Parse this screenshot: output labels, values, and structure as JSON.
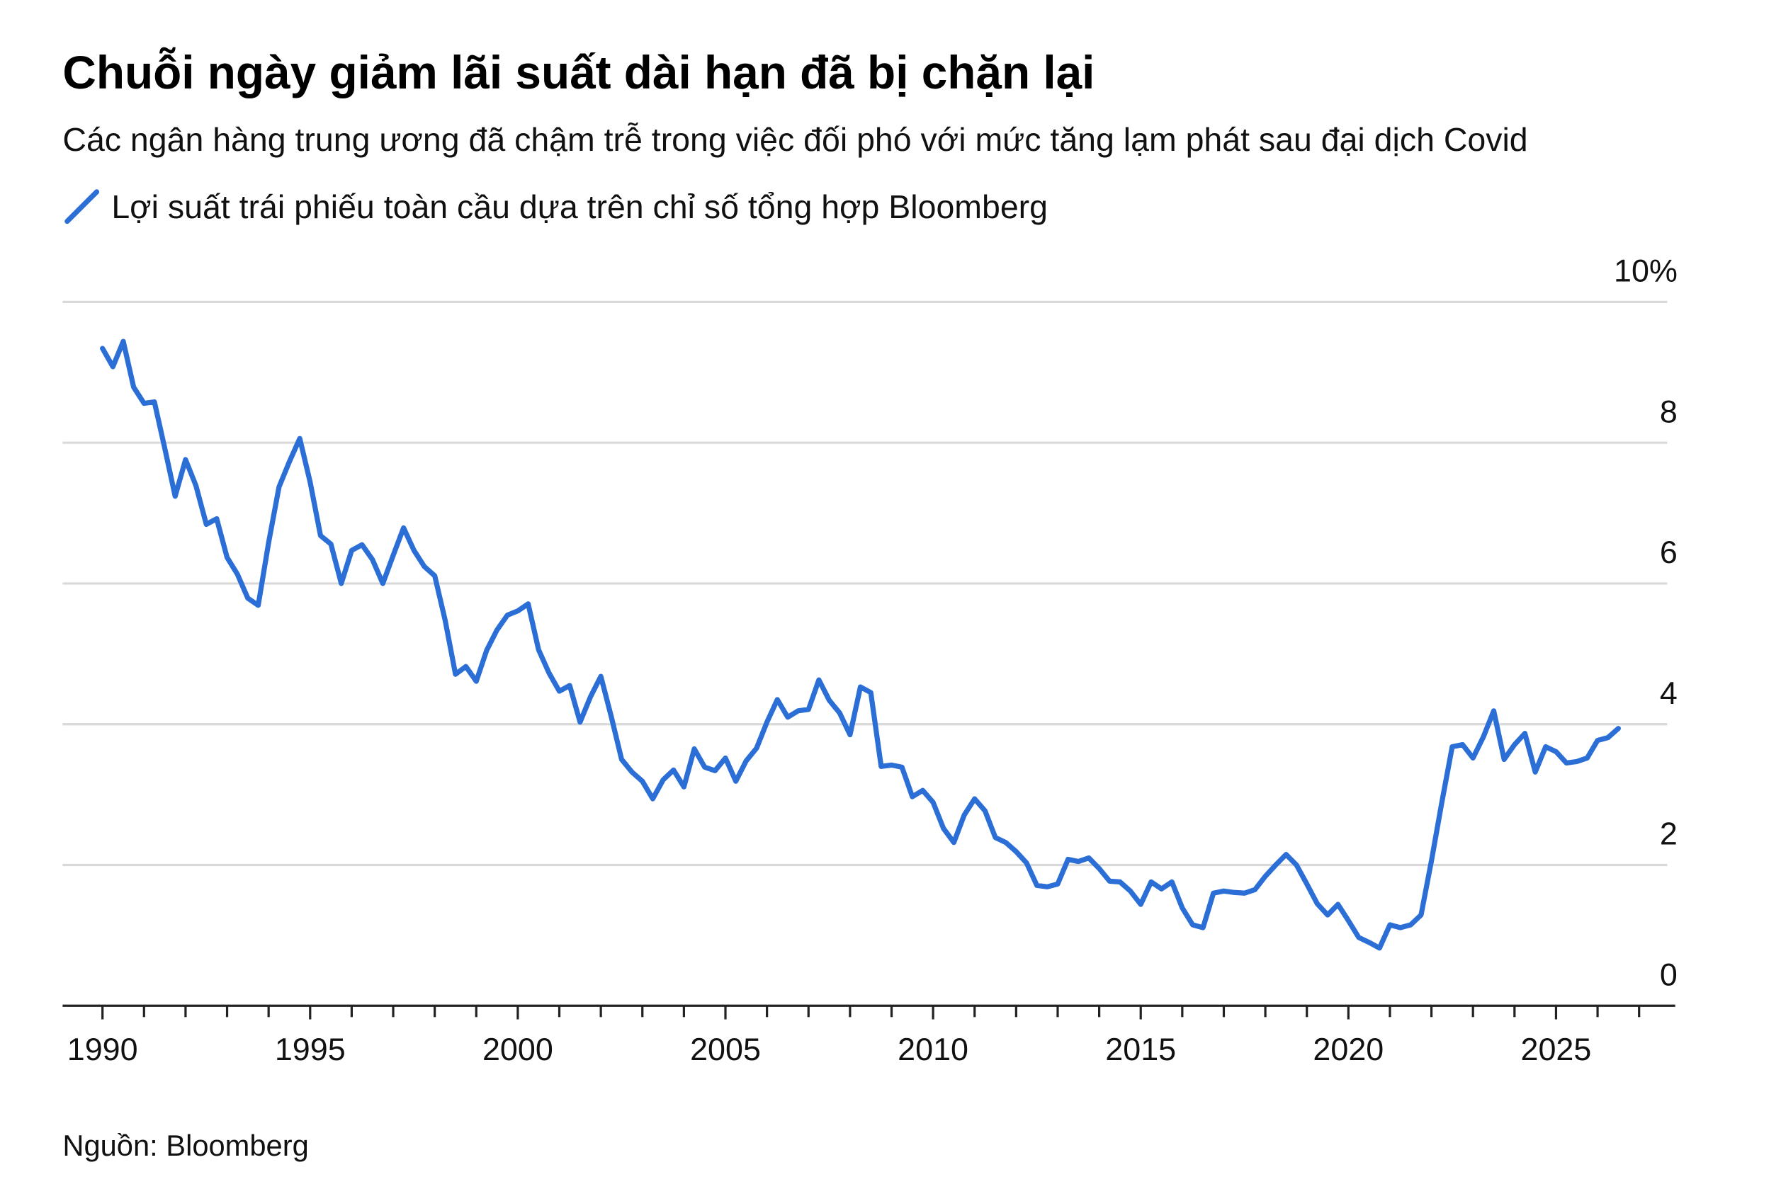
{
  "chart_data": {
    "type": "line",
    "title": "Chuỗi ngày giảm lãi suất dài hạn đã bị chặn lại",
    "subtitle": "Các ngân hàng trung ương đã chậm trễ trong việc đối phó với mức tăng lạm phát sau đại dịch Covid",
    "source": "Nguồn: Bloomberg",
    "x": [
      1990,
      1990.25,
      1990.5,
      1990.75,
      1991,
      1991.25,
      1991.5,
      1991.75,
      1992,
      1992.25,
      1992.5,
      1992.75,
      1993,
      1993.25,
      1993.5,
      1993.75,
      1994,
      1994.25,
      1994.5,
      1994.75,
      1995,
      1995.25,
      1995.5,
      1995.75,
      1996,
      1996.25,
      1996.5,
      1996.75,
      1997,
      1997.25,
      1997.5,
      1997.75,
      1998,
      1998.25,
      1998.5,
      1998.75,
      1999,
      1999.25,
      1999.5,
      1999.75,
      2000,
      2000.25,
      2000.5,
      2000.75,
      2001,
      2001.25,
      2001.5,
      2001.75,
      2002,
      2002.25,
      2002.5,
      2002.75,
      2003,
      2003.25,
      2003.5,
      2003.75,
      2004,
      2004.25,
      2004.5,
      2004.75,
      2005,
      2005.25,
      2005.5,
      2005.75,
      2006,
      2006.25,
      2006.5,
      2006.75,
      2007,
      2007.25,
      2007.5,
      2007.75,
      2008,
      2008.25,
      2008.5,
      2008.75,
      2009,
      2009.25,
      2009.5,
      2009.75,
      2010,
      2010.25,
      2010.5,
      2010.75,
      2011,
      2011.25,
      2011.5,
      2011.75,
      2012,
      2012.25,
      2012.5,
      2012.75,
      2013,
      2013.25,
      2013.5,
      2013.75,
      2014,
      2014.25,
      2014.5,
      2014.75,
      2015,
      2015.25,
      2015.5,
      2015.75,
      2016,
      2016.25,
      2016.5,
      2016.75,
      2017,
      2017.25,
      2017.5,
      2017.75,
      2018,
      2018.25,
      2018.5,
      2018.75,
      2019,
      2019.25,
      2019.5,
      2019.75,
      2020,
      2020.25,
      2020.5,
      2020.75,
      2021,
      2021.25,
      2021.5,
      2021.75,
      2022,
      2022.25,
      2022.5,
      2022.75,
      2023,
      2023.25,
      2023.5,
      2023.75,
      2024,
      2024.25,
      2024.5,
      2024.75,
      2025,
      2025.25,
      2025.5,
      2025.75,
      2026,
      2026.25,
      2026.5
    ],
    "series": [
      {
        "name": "Lợi suất trái phiếu toàn cầu dựa trên chỉ số tổng hợp Bloomberg",
        "color": "#2b6fd6",
        "values": [
          9.34,
          9.08,
          9.44,
          8.79,
          8.56,
          8.58,
          7.92,
          7.24,
          7.76,
          7.39,
          6.84,
          6.92,
          6.37,
          6.13,
          5.79,
          5.69,
          6.58,
          7.37,
          7.73,
          8.06,
          7.44,
          6.68,
          6.56,
          6.0,
          6.47,
          6.55,
          6.34,
          6.0,
          6.4,
          6.79,
          6.47,
          6.24,
          6.11,
          5.48,
          4.71,
          4.82,
          4.61,
          5.05,
          5.34,
          5.55,
          5.61,
          5.71,
          5.06,
          4.73,
          4.47,
          4.55,
          4.03,
          4.39,
          4.68,
          4.11,
          3.5,
          3.32,
          3.19,
          2.94,
          3.21,
          3.35,
          3.11,
          3.65,
          3.39,
          3.34,
          3.52,
          3.19,
          3.48,
          3.66,
          4.03,
          4.35,
          4.1,
          4.19,
          4.21,
          4.63,
          4.34,
          4.16,
          3.85,
          4.53,
          4.45,
          3.4,
          3.42,
          3.39,
          2.97,
          3.06,
          2.89,
          2.52,
          2.32,
          2.71,
          2.94,
          2.77,
          2.39,
          2.32,
          2.19,
          2.03,
          1.71,
          1.69,
          1.73,
          2.08,
          2.05,
          2.1,
          1.95,
          1.77,
          1.76,
          1.63,
          1.44,
          1.76,
          1.66,
          1.76,
          1.39,
          1.15,
          1.11,
          1.6,
          1.63,
          1.61,
          1.6,
          1.65,
          1.84,
          2.0,
          2.15,
          2.0,
          1.73,
          1.45,
          1.29,
          1.44,
          1.21,
          0.97,
          0.9,
          0.82,
          1.15,
          1.11,
          1.15,
          1.29,
          2.06,
          2.89,
          3.68,
          3.71,
          3.52,
          3.82,
          4.19,
          3.5,
          3.71,
          3.87,
          3.32,
          3.68,
          3.61,
          3.45,
          3.47,
          3.52,
          3.77,
          3.81,
          3.94
        ]
      }
    ],
    "xlim": [
      1989.04,
      2027.87
    ],
    "xticks": [
      1990,
      1995,
      2000,
      2005,
      2010,
      2015,
      2020,
      2025
    ],
    "x_minor_ticks": [
      1991,
      1992,
      1993,
      1994,
      1996,
      1997,
      1998,
      1999,
      2001,
      2002,
      2003,
      2004,
      2006,
      2007,
      2008,
      2009,
      2011,
      2012,
      2013,
      2014,
      2016,
      2017,
      2018,
      2019,
      2021,
      2022,
      2023,
      2024,
      2026,
      2027
    ],
    "ylim": [
      0,
      10
    ],
    "yticks": [
      0,
      2,
      4,
      6,
      8,
      {
        "value": 10,
        "label": "10%"
      }
    ],
    "grid": true
  }
}
